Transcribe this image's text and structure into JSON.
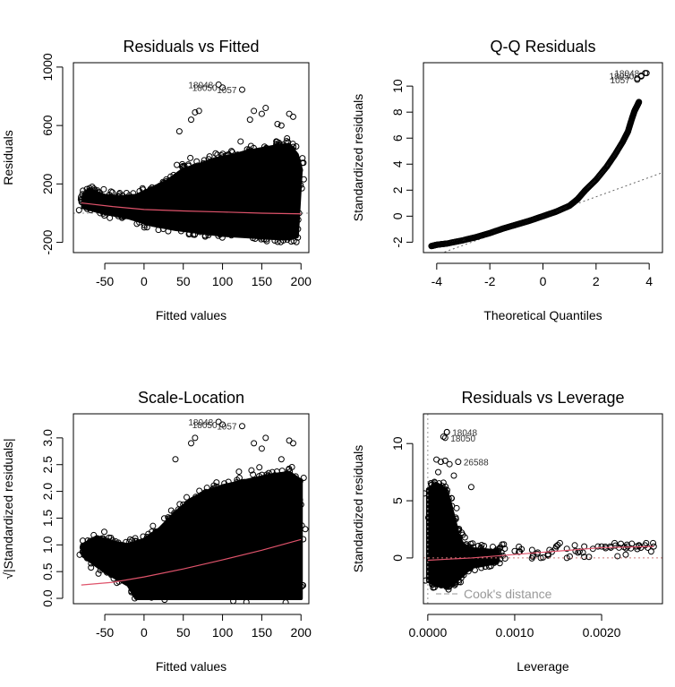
{
  "chart_data": [
    {
      "type": "scatter",
      "title": "Residuals vs Fitted",
      "xlabel": "Fitted values",
      "ylabel": "Residuals",
      "xlim": [
        -90,
        210
      ],
      "ylim": [
        -270,
        1030
      ],
      "xticks": [
        -50,
        0,
        50,
        100,
        150,
        200
      ],
      "yticks": [
        -200,
        200,
        600,
        1000
      ],
      "reference_line": 0,
      "smoother": [
        [
          -80,
          70
        ],
        [
          -40,
          45
        ],
        [
          0,
          25
        ],
        [
          50,
          15
        ],
        [
          100,
          8
        ],
        [
          150,
          0
        ],
        [
          200,
          -5
        ]
      ],
      "labeled_points": [
        {
          "x": 95,
          "y": 880,
          "label": "18048"
        },
        {
          "x": 100,
          "y": 860,
          "label": "18050"
        },
        {
          "x": 125,
          "y": 845,
          "label": "1057"
        }
      ],
      "outliers": [
        [
          60,
          640
        ],
        [
          65,
          690
        ],
        [
          70,
          700
        ],
        [
          45,
          560
        ],
        [
          140,
          700
        ],
        [
          150,
          680
        ],
        [
          155,
          720
        ],
        [
          185,
          680
        ],
        [
          190,
          660
        ],
        [
          135,
          640
        ],
        [
          170,
          610
        ],
        [
          175,
          600
        ]
      ],
      "cloud": [
        [
          -78,
          110
        ],
        [
          -70,
          160
        ],
        [
          -60,
          140
        ],
        [
          -50,
          120
        ],
        [
          -30,
          110
        ],
        [
          -10,
          120
        ],
        [
          10,
          170
        ],
        [
          30,
          220
        ],
        [
          50,
          300
        ],
        [
          70,
          330
        ],
        [
          90,
          370
        ],
        [
          110,
          390
        ],
        [
          130,
          420
        ],
        [
          150,
          440
        ],
        [
          170,
          460
        ],
        [
          185,
          470
        ],
        [
          195,
          400
        ],
        [
          200,
          300
        ],
        [
          195,
          -160
        ],
        [
          185,
          -175
        ],
        [
          160,
          -170
        ],
        [
          130,
          -160
        ],
        [
          100,
          -150
        ],
        [
          70,
          -130
        ],
        [
          40,
          -110
        ],
        [
          10,
          -80
        ],
        [
          -20,
          -30
        ],
        [
          -50,
          0
        ],
        [
          -78,
          40
        ]
      ]
    },
    {
      "type": "scatter",
      "title": "Q-Q Residuals",
      "xlabel": "Theoretical Quantiles",
      "ylabel": "Standardized residuals",
      "xlim": [
        -4.5,
        4.5
      ],
      "ylim": [
        -2.8,
        11.8
      ],
      "xticks": [
        -4,
        -2,
        0,
        2,
        4
      ],
      "yticks": [
        -2,
        0,
        2,
        4,
        6,
        8,
        10
      ],
      "points": [
        [
          -4.2,
          -2.3
        ],
        [
          -4.0,
          -2.2
        ],
        [
          -3.6,
          -2.1
        ],
        [
          -3.0,
          -1.85
        ],
        [
          -2.5,
          -1.6
        ],
        [
          -2.0,
          -1.3
        ],
        [
          -1.5,
          -0.95
        ],
        [
          -1.0,
          -0.65
        ],
        [
          -0.5,
          -0.35
        ],
        [
          0.0,
          0.0
        ],
        [
          0.5,
          0.35
        ],
        [
          1.0,
          0.8
        ],
        [
          1.3,
          1.3
        ],
        [
          1.6,
          2.0
        ],
        [
          2.0,
          2.8
        ],
        [
          2.4,
          3.8
        ],
        [
          2.7,
          4.7
        ],
        [
          3.0,
          5.7
        ],
        [
          3.2,
          6.5
        ],
        [
          3.35,
          7.5
        ],
        [
          3.45,
          8.1
        ],
        [
          3.55,
          8.5
        ],
        [
          3.62,
          8.8
        ]
      ],
      "top_points": [
        [
          3.55,
          10.6
        ],
        [
          3.7,
          10.75
        ],
        [
          3.85,
          11.0
        ]
      ],
      "labeled_points": [
        {
          "x": 3.9,
          "y": 11.0,
          "label": "18048"
        },
        {
          "x": 3.7,
          "y": 10.8,
          "label": "18050"
        },
        {
          "x": 3.55,
          "y": 10.5,
          "label": "1057"
        }
      ],
      "reference_line": [
        [
          -4.5,
          -3.35
        ],
        [
          4.5,
          3.35
        ]
      ]
    },
    {
      "type": "scatter",
      "title": "Scale-Location",
      "xlabel": "Fitted values",
      "ylabel": "√|Standardized residuals|",
      "xlim": [
        -90,
        210
      ],
      "ylim": [
        -0.1,
        3.45
      ],
      "xticks": [
        -50,
        0,
        50,
        100,
        150,
        200
      ],
      "yticks": [
        0.0,
        0.5,
        1.0,
        1.5,
        2.0,
        2.5,
        3.0
      ],
      "smoother": [
        [
          -80,
          0.25
        ],
        [
          -40,
          0.3
        ],
        [
          0,
          0.4
        ],
        [
          50,
          0.55
        ],
        [
          100,
          0.72
        ],
        [
          150,
          0.9
        ],
        [
          200,
          1.1
        ]
      ],
      "labeled_points": [
        {
          "x": 95,
          "y": 3.3,
          "label": "18048"
        },
        {
          "x": 100,
          "y": 3.25,
          "label": "18050"
        },
        {
          "x": 125,
          "y": 3.22,
          "label": "1057"
        }
      ],
      "outliers": [
        [
          60,
          2.9
        ],
        [
          65,
          3.0
        ],
        [
          40,
          2.6
        ],
        [
          140,
          2.9
        ],
        [
          150,
          2.8
        ],
        [
          155,
          3.0
        ],
        [
          185,
          2.95
        ],
        [
          190,
          2.9
        ],
        [
          175,
          2.6
        ]
      ],
      "cloud": [
        [
          -78,
          1.0
        ],
        [
          -60,
          1.15
        ],
        [
          -40,
          1.05
        ],
        [
          -20,
          1.0
        ],
        [
          0,
          1.1
        ],
        [
          20,
          1.3
        ],
        [
          40,
          1.6
        ],
        [
          60,
          1.85
        ],
        [
          80,
          2.0
        ],
        [
          100,
          2.1
        ],
        [
          130,
          2.2
        ],
        [
          160,
          2.3
        ],
        [
          185,
          2.35
        ],
        [
          200,
          2.2
        ],
        [
          200,
          0.0
        ],
        [
          -10,
          0.0
        ],
        [
          -20,
          0.25
        ],
        [
          -50,
          0.5
        ],
        [
          -78,
          0.8
        ]
      ]
    },
    {
      "type": "scatter",
      "title": "Residuals vs Leverage",
      "xlabel": "Leverage",
      "ylabel": "Standardized residuals",
      "xlim": [
        -5e-05,
        0.0027
      ],
      "ylim": [
        -4.0,
        12.6
      ],
      "xticks": [
        0.0,
        0.001,
        0.002
      ],
      "xtick_labels": [
        "0.0000",
        "0.0010",
        "0.0020"
      ],
      "yticks": [
        0,
        5,
        10
      ],
      "smoother": [
        [
          0.0,
          -0.2
        ],
        [
          0.0005,
          0.0
        ],
        [
          0.001,
          0.3
        ],
        [
          0.0015,
          0.6
        ],
        [
          0.002,
          0.9
        ],
        [
          0.0026,
          1.0
        ]
      ],
      "labeled_points": [
        {
          "x": 0.00022,
          "y": 11.0,
          "label": "18048"
        },
        {
          "x": 0.0002,
          "y": 10.5,
          "label": "18050"
        },
        {
          "x": 0.00035,
          "y": 8.4,
          "label": "26588"
        }
      ],
      "tail_points": [
        [
          0.0006,
          0.3
        ],
        [
          0.0008,
          0.4
        ],
        [
          0.001,
          0.6
        ],
        [
          0.0012,
          0.7
        ],
        [
          0.0014,
          0.7
        ],
        [
          0.0016,
          0.8
        ],
        [
          0.0017,
          0.6
        ],
        [
          0.0018,
          1.0
        ],
        [
          0.0019,
          0.8
        ],
        [
          0.002,
          1.0
        ],
        [
          0.0021,
          1.0
        ],
        [
          0.0022,
          0.9
        ],
        [
          0.0023,
          1.0
        ],
        [
          0.0024,
          1.0
        ],
        [
          0.0025,
          1.1
        ],
        [
          0.0026,
          1.0
        ],
        [
          0.0016,
          0.0
        ],
        [
          0.0013,
          0.0
        ],
        [
          0.0018,
          0.1
        ]
      ],
      "cluster": [
        [
          0.0,
          6.0
        ],
        [
          0.0001,
          6.5
        ],
        [
          0.0002,
          6.0
        ],
        [
          0.00025,
          5.0
        ],
        [
          0.0003,
          3.5
        ],
        [
          0.00035,
          2.0
        ],
        [
          0.0004,
          1.2
        ],
        [
          0.0005,
          0.8
        ],
        [
          0.0008,
          0.6
        ],
        [
          0.0008,
          -0.4
        ],
        [
          0.0005,
          -0.8
        ],
        [
          0.0004,
          -1.5
        ],
        [
          0.0003,
          -2.2
        ],
        [
          0.0002,
          -2.5
        ],
        [
          0.0001,
          -2.4
        ],
        [
          0.0,
          -2.0
        ]
      ],
      "legend": "Cook's distance"
    }
  ]
}
